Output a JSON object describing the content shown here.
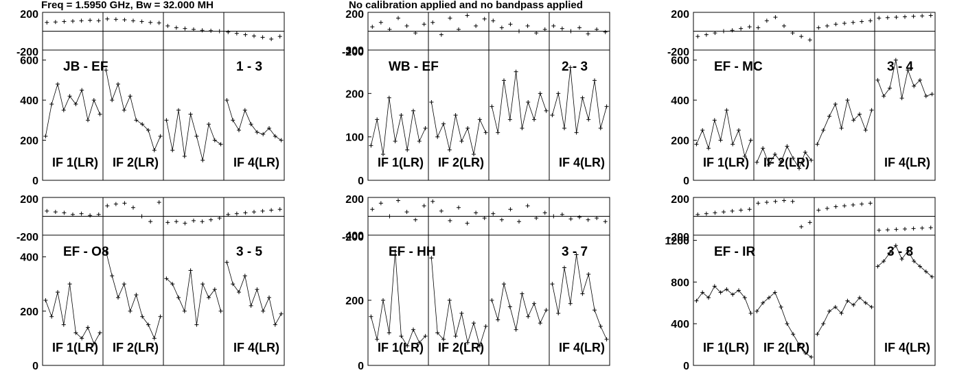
{
  "header": {
    "freq_text": "Freq = 1.5950 GHz, Bw = 32.000 MH",
    "calibration_text": "No calibration applied and no bandpass applied"
  },
  "chart_data": [
    {
      "type": "line",
      "baseline": "JB - EF",
      "baseline_number": "1 - 3",
      "if_labels": [
        "IF 1(LR)",
        "IF 2(LR)",
        "",
        "IF 4(LR)"
      ],
      "phase": {
        "ylim": [
          -200,
          200
        ],
        "tick_labels": [
          "200",
          "-200"
        ],
        "series": [
          [
            100,
            105,
            110,
            115,
            120,
            125,
            120
          ],
          [
            140,
            135,
            130,
            120,
            110,
            100,
            95
          ],
          [
            60,
            40,
            30,
            20,
            10,
            5,
            0
          ],
          [
            -10,
            -25,
            -40,
            -55,
            -70,
            -90,
            -60
          ]
        ]
      },
      "amplitude": {
        "ylim": [
          0,
          650
        ],
        "tick_labels": [
          "600",
          "400",
          "200",
          "0"
        ],
        "series": [
          [
            220,
            380,
            480,
            350,
            420,
            380,
            450,
            300,
            400,
            330
          ],
          [
            550,
            400,
            480,
            350,
            420,
            300,
            280,
            250,
            150,
            220
          ],
          [
            300,
            150,
            350,
            120,
            330,
            220,
            100,
            280,
            200,
            180
          ],
          [
            400,
            300,
            250,
            350,
            280,
            240,
            230,
            260,
            220,
            200
          ]
        ]
      }
    },
    {
      "type": "line",
      "baseline": "WB - EF",
      "baseline_number": "2 - 3",
      "if_labels": [
        "IF 1(LR)",
        "IF 2(LR)",
        "",
        "IF 4(LR)"
      ],
      "phase": {
        "ylim": [
          -200,
          200
        ],
        "tick_labels": [
          "200",
          "-200"
        ],
        "series": [
          [
            50,
            100,
            20,
            150,
            60,
            -20,
            80
          ],
          [
            100,
            -40,
            150,
            20,
            180,
            60,
            140
          ],
          [
            120,
            40,
            80,
            0,
            60,
            -20,
            20
          ],
          [
            60,
            30,
            0,
            40,
            -30,
            20,
            -10
          ]
        ]
      },
      "amplitude": {
        "ylim": [
          0,
          300
        ],
        "tick_labels": [
          "300",
          "200",
          "100",
          "0"
        ],
        "series": [
          [
            80,
            140,
            60,
            190,
            90,
            150,
            70,
            160,
            90,
            120
          ],
          [
            180,
            100,
            130,
            70,
            150,
            90,
            120,
            60,
            140,
            110
          ],
          [
            170,
            110,
            230,
            140,
            250,
            120,
            180,
            140,
            200,
            160
          ],
          [
            150,
            200,
            120,
            260,
            110,
            190,
            140,
            230,
            120,
            170
          ]
        ]
      }
    },
    {
      "type": "line",
      "baseline": "EF - MC",
      "baseline_number": "3 - 4",
      "if_labels": [
        "IF 1(LR)",
        "IF 2(LR)",
        "",
        "IF 4(LR)"
      ],
      "phase": {
        "ylim": [
          -200,
          200
        ],
        "tick_labels": [
          "200",
          "-200"
        ],
        "series": [
          [
            -60,
            -40,
            -20,
            0,
            10,
            30,
            50
          ],
          [
            40,
            120,
            160,
            60,
            -20,
            -60,
            -100
          ],
          [
            40,
            60,
            80,
            90,
            100,
            110,
            120
          ],
          [
            150,
            155,
            160,
            165,
            170,
            175,
            180
          ]
        ]
      },
      "amplitude": {
        "ylim": [
          0,
          650
        ],
        "tick_labels": [
          "600",
          "400",
          "200",
          "0"
        ],
        "series": [
          [
            180,
            250,
            160,
            300,
            200,
            350,
            180,
            250,
            120,
            200
          ],
          [
            90,
            160,
            80,
            130,
            90,
            170,
            110,
            60,
            140,
            100
          ],
          [
            180,
            250,
            320,
            380,
            260,
            400,
            300,
            330,
            250,
            350
          ],
          [
            500,
            420,
            460,
            600,
            410,
            550,
            470,
            500,
            420,
            430
          ]
        ]
      }
    },
    {
      "type": "line",
      "baseline": "EF - O8",
      "baseline_number": "3 - 5",
      "if_labels": [
        "IF 1(LR)",
        "IF 2(LR)",
        "",
        "IF 4(LR)"
      ],
      "phase": {
        "ylim": [
          -200,
          200
        ],
        "tick_labels": [
          "200",
          "-200"
        ],
        "series": [
          [
            60,
            50,
            40,
            20,
            30,
            10,
            20
          ],
          [
            120,
            140,
            150,
            100,
            0,
            -60,
            160
          ],
          [
            -70,
            -60,
            -80,
            -50,
            -60,
            -40,
            -20
          ],
          [
            20,
            30,
            40,
            50,
            60,
            70,
            80
          ]
        ]
      },
      "amplitude": {
        "ylim": [
          0,
          480
        ],
        "tick_labels": [
          "400",
          "200",
          "0"
        ],
        "series": [
          [
            240,
            180,
            270,
            150,
            300,
            120,
            100,
            140,
            80,
            120
          ],
          [
            420,
            330,
            250,
            300,
            200,
            260,
            180,
            150,
            100,
            180
          ],
          [
            320,
            300,
            250,
            200,
            350,
            150,
            300,
            250,
            280,
            200
          ],
          [
            380,
            300,
            270,
            330,
            220,
            280,
            200,
            250,
            150,
            190
          ]
        ]
      }
    },
    {
      "type": "line",
      "baseline": "EF - HH",
      "baseline_number": "3 - 7",
      "if_labels": [
        "IF 1(LR)",
        "IF 2(LR)",
        "",
        "IF 4(LR)"
      ],
      "phase": {
        "ylim": [
          -200,
          200
        ],
        "tick_labels": [
          "200",
          "-200"
        ],
        "series": [
          [
            80,
            150,
            0,
            180,
            50,
            -40,
            120
          ],
          [
            170,
            60,
            -50,
            100,
            -80,
            40,
            -20
          ],
          [
            30,
            -40,
            80,
            -60,
            120,
            -20,
            40
          ],
          [
            0,
            20,
            -30,
            -10,
            -40,
            -20,
            -60
          ]
        ]
      },
      "amplitude": {
        "ylim": [
          0,
          400
        ],
        "tick_labels": [
          "400",
          "200",
          "0"
        ],
        "series": [
          [
            150,
            80,
            200,
            100,
            350,
            90,
            60,
            110,
            70,
            90
          ],
          [
            330,
            100,
            80,
            200,
            90,
            160,
            70,
            130,
            60,
            120
          ],
          [
            200,
            140,
            250,
            180,
            110,
            220,
            150,
            190,
            130,
            170
          ],
          [
            250,
            160,
            300,
            190,
            340,
            220,
            280,
            170,
            120,
            80
          ]
        ]
      }
    },
    {
      "type": "line",
      "baseline": "EF - IR",
      "baseline_number": "3 - 8",
      "if_labels": [
        "IF 1(LR)",
        "IF 2(LR)",
        "",
        "IF 4(LR)"
      ],
      "phase": {
        "ylim": [
          -200,
          200
        ],
        "tick_labels": [
          "200",
          "-200"
        ],
        "series": [
          [
            20,
            30,
            40,
            50,
            60,
            70,
            80
          ],
          [
            150,
            160,
            170,
            180,
            170,
            -120,
            -70
          ],
          [
            70,
            90,
            110,
            120,
            130,
            140,
            150
          ],
          [
            -160,
            -155,
            -150,
            -145,
            -140,
            -135,
            -130
          ]
        ]
      },
      "amplitude": {
        "ylim": [
          0,
          1250
        ],
        "tick_labels": [
          "1200",
          "800",
          "400",
          "0"
        ],
        "series": [
          [
            620,
            700,
            650,
            760,
            700,
            730,
            680,
            720,
            650,
            500
          ],
          [
            520,
            600,
            650,
            700,
            560,
            400,
            300,
            200,
            120,
            80
          ],
          [
            300,
            400,
            520,
            560,
            500,
            620,
            580,
            650,
            600,
            560
          ],
          [
            950,
            1000,
            1080,
            1150,
            1020,
            1100,
            1000,
            950,
            900,
            850
          ]
        ]
      }
    }
  ]
}
